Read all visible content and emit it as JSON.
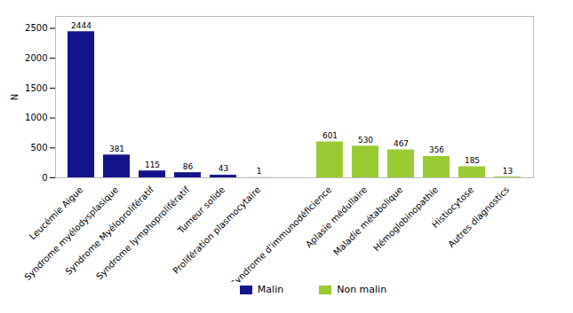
{
  "chart_data": {
    "type": "bar",
    "y_label": "N",
    "categories": [
      "Leucémie Aigue",
      "Syndrome myélodysplasique",
      "Syndrome Myéloprolifératif",
      "Syndrome lymphoprolifératif",
      "Tumeur solide",
      "Prolifération plasmocytaire",
      null,
      "Syndrome d'immunodéficience",
      "Aplasie médullaire",
      "Maladie métabolique",
      "Hémoglobinopathie",
      "Histiocytose",
      "Autres diagnostics"
    ],
    "series": [
      {
        "name": "Malin",
        "color": "#14148c",
        "values": [
          2444,
          381,
          115,
          86,
          43,
          1,
          null,
          null,
          null,
          null,
          null,
          null,
          null
        ]
      },
      {
        "name": "Non malin",
        "color": "#99cc33",
        "values": [
          null,
          null,
          null,
          null,
          null,
          null,
          null,
          601,
          530,
          467,
          356,
          185,
          13
        ]
      }
    ],
    "ylim": [
      0,
      2700
    ],
    "yticks": [
      0,
      500,
      1000,
      1500,
      2000,
      2500
    ],
    "data_labels": true,
    "legend": "bottom"
  }
}
